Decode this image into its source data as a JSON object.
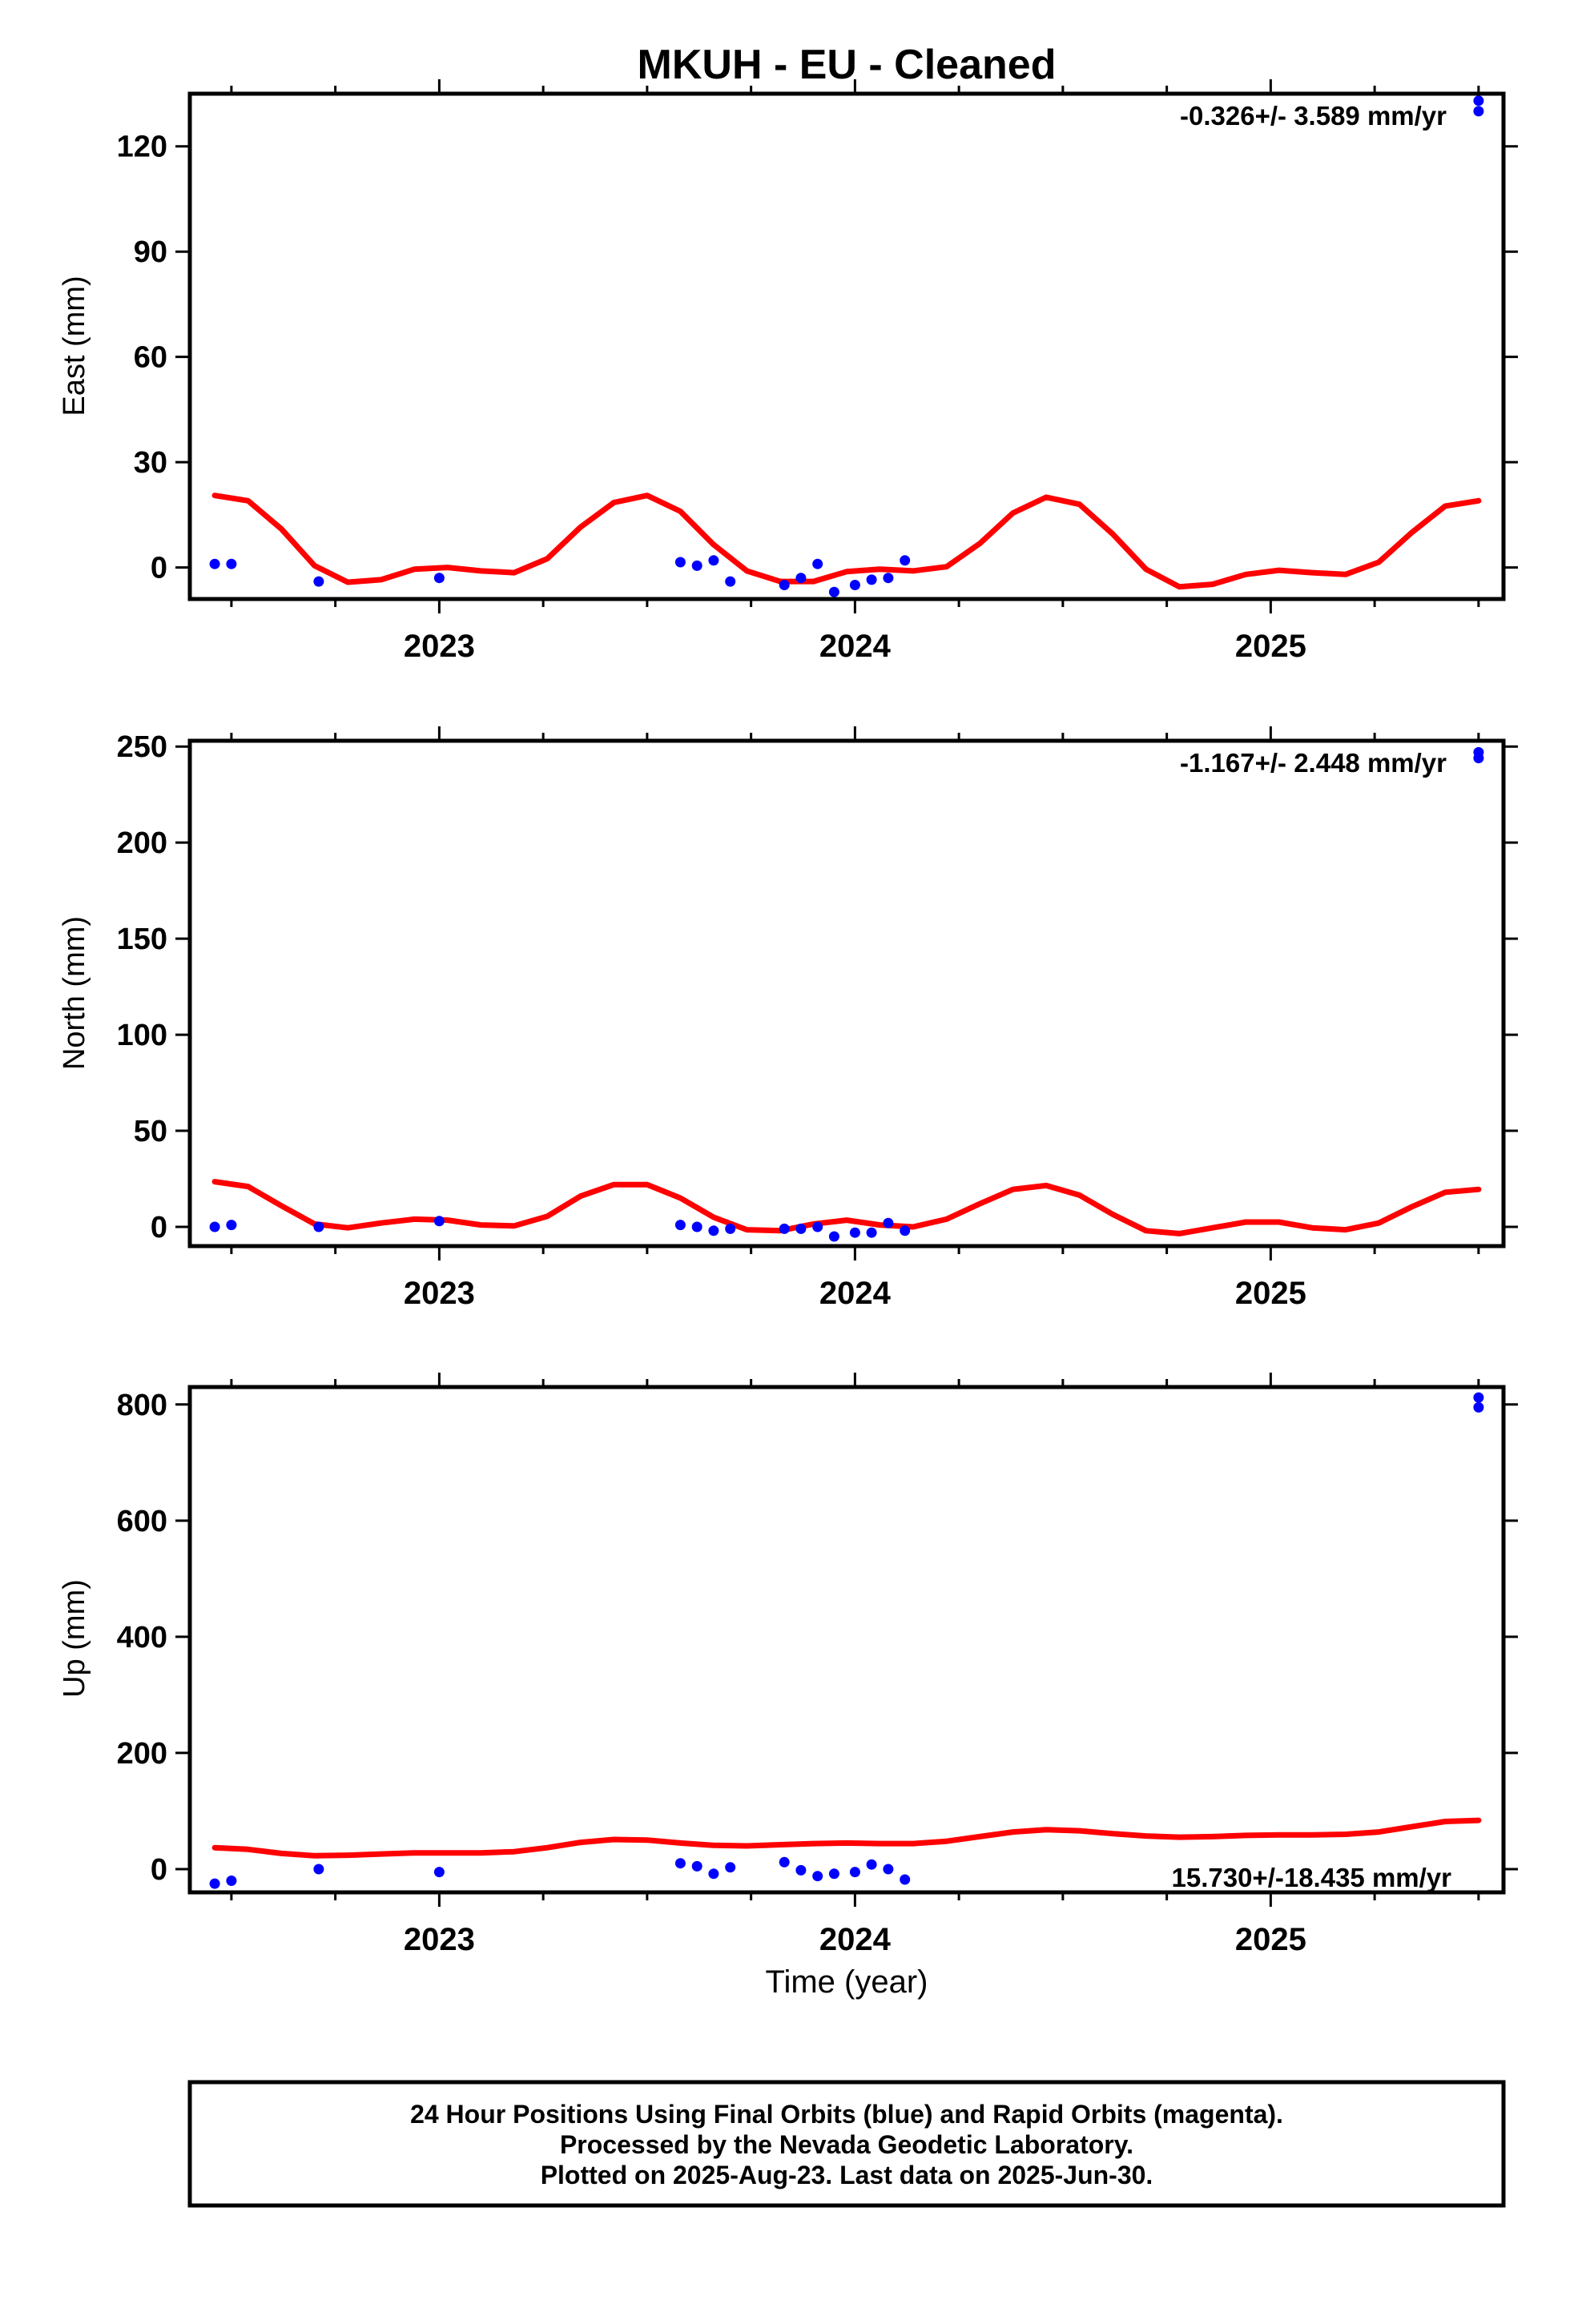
{
  "title": "MKUH  - EU - Cleaned",
  "xlabel": "Time (year)",
  "footer": [
    "24 Hour Positions Using Final Orbits (blue) and Rapid Orbits (magenta).",
    "Processed by the Nevada Geodetic Laboratory.",
    "Plotted on 2025-Aug-23. Last data on 2025-Jun-30."
  ],
  "colors": {
    "points": "#0000ff",
    "model": "#ff0000",
    "frame": "#000000"
  },
  "chart_data": [
    {
      "type": "scatter",
      "ylabel": "East (mm)",
      "rate_text": "-0.326+/- 3.589 mm/yr",
      "rate_position": "top-right",
      "xlim": [
        2022.4,
        2025.56
      ],
      "ylim": [
        -9,
        135
      ],
      "x_ticks": [
        2023,
        2024,
        2025
      ],
      "y_ticks": [
        0,
        30,
        60,
        90,
        120
      ],
      "grid": false,
      "points": [
        [
          2022.46,
          1
        ],
        [
          2022.5,
          1
        ],
        [
          2022.71,
          -4
        ],
        [
          2023.0,
          -3
        ],
        [
          2023.58,
          1.5
        ],
        [
          2023.62,
          0.5
        ],
        [
          2023.66,
          2
        ],
        [
          2023.7,
          -4
        ],
        [
          2023.83,
          -5
        ],
        [
          2023.87,
          -3
        ],
        [
          2023.91,
          1
        ],
        [
          2023.95,
          -7
        ],
        [
          2024.0,
          -5
        ],
        [
          2024.04,
          -3.5
        ],
        [
          2024.08,
          -3
        ],
        [
          2024.12,
          2
        ],
        [
          2025.5,
          130
        ],
        [
          2025.5,
          133
        ]
      ],
      "model": {
        "name": "model",
        "x": [
          2022.46,
          2022.54,
          2022.62,
          2022.7,
          2022.78,
          2022.86,
          2022.94,
          2023.02,
          2023.1,
          2023.18,
          2023.26,
          2023.34,
          2023.42,
          2023.5,
          2023.58,
          2023.66,
          2023.74,
          2023.82,
          2023.9,
          2023.98,
          2024.06,
          2024.14,
          2024.22,
          2024.3,
          2024.38,
          2024.46,
          2024.54,
          2024.62,
          2024.7,
          2024.78,
          2024.86,
          2024.94,
          2025.02,
          2025.1,
          2025.18,
          2025.26,
          2025.34,
          2025.42,
          2025.5
        ],
        "y": [
          20.5,
          19.0,
          11.0,
          0.5,
          -4.2,
          -3.5,
          -0.5,
          0.0,
          -1.0,
          -1.5,
          2.5,
          11.5,
          18.5,
          20.5,
          16.0,
          6.5,
          -1.0,
          -4.0,
          -4.0,
          -1.2,
          -0.5,
          -1.0,
          0.2,
          6.8,
          15.5,
          20.0,
          18.0,
          9.5,
          -0.5,
          -5.5,
          -4.8,
          -2.0,
          -0.8,
          -1.5,
          -2.0,
          1.5,
          10.0,
          17.5,
          19.0
        ]
      }
    },
    {
      "type": "scatter",
      "ylabel": "North (mm)",
      "rate_text": "-1.167+/- 2.448 mm/yr",
      "rate_position": "top-right",
      "xlim": [
        2022.4,
        2025.56
      ],
      "ylim": [
        -10,
        253
      ],
      "x_ticks": [
        2023,
        2024,
        2025
      ],
      "y_ticks": [
        0,
        50,
        100,
        150,
        200,
        250
      ],
      "grid": false,
      "points": [
        [
          2022.46,
          0
        ],
        [
          2022.5,
          1
        ],
        [
          2022.71,
          0
        ],
        [
          2023.0,
          3
        ],
        [
          2023.58,
          1
        ],
        [
          2023.62,
          0
        ],
        [
          2023.66,
          -2
        ],
        [
          2023.7,
          -1
        ],
        [
          2023.83,
          -1
        ],
        [
          2023.87,
          -1
        ],
        [
          2023.91,
          0
        ],
        [
          2023.95,
          -5
        ],
        [
          2024.0,
          -3
        ],
        [
          2024.04,
          -3
        ],
        [
          2024.08,
          2
        ],
        [
          2024.12,
          -2
        ],
        [
          2025.5,
          244
        ],
        [
          2025.5,
          247
        ]
      ],
      "model": {
        "name": "model",
        "x": [
          2022.46,
          2022.54,
          2022.62,
          2022.7,
          2022.78,
          2022.86,
          2022.94,
          2023.02,
          2023.1,
          2023.18,
          2023.26,
          2023.34,
          2023.42,
          2023.5,
          2023.58,
          2023.66,
          2023.74,
          2023.82,
          2023.9,
          2023.98,
          2024.06,
          2024.14,
          2024.22,
          2024.3,
          2024.38,
          2024.46,
          2024.54,
          2024.62,
          2024.7,
          2024.78,
          2024.86,
          2024.94,
          2025.02,
          2025.1,
          2025.18,
          2025.26,
          2025.34,
          2025.42,
          2025.5
        ],
        "y": [
          23.5,
          21.0,
          11.0,
          1.5,
          -0.5,
          2.0,
          4.0,
          3.5,
          1.0,
          0.5,
          5.5,
          16.0,
          22.0,
          22.0,
          15.0,
          5.0,
          -1.5,
          -2.0,
          1.5,
          3.5,
          1.0,
          0.0,
          4.0,
          12.0,
          19.5,
          21.5,
          16.5,
          6.5,
          -2.0,
          -3.5,
          -0.5,
          2.5,
          2.5,
          -0.5,
          -1.5,
          2.0,
          10.5,
          18.0,
          19.5
        ]
      }
    },
    {
      "type": "scatter",
      "ylabel": "Up (mm)",
      "rate_text": "15.730+/-18.435 mm/yr",
      "rate_position": "bottom-right",
      "xlim": [
        2022.4,
        2025.56
      ],
      "ylim": [
        -40,
        830
      ],
      "x_ticks": [
        2023,
        2024,
        2025
      ],
      "y_ticks": [
        0,
        200,
        400,
        600,
        800
      ],
      "grid": false,
      "points": [
        [
          2022.46,
          -25
        ],
        [
          2022.5,
          -20
        ],
        [
          2022.71,
          0
        ],
        [
          2023.0,
          -5
        ],
        [
          2023.58,
          10
        ],
        [
          2023.62,
          5
        ],
        [
          2023.66,
          -8
        ],
        [
          2023.7,
          3
        ],
        [
          2023.83,
          12
        ],
        [
          2023.87,
          -2
        ],
        [
          2023.91,
          -12
        ],
        [
          2023.95,
          -8
        ],
        [
          2024.0,
          -5
        ],
        [
          2024.04,
          8
        ],
        [
          2024.08,
          0
        ],
        [
          2024.12,
          -18
        ],
        [
          2025.5,
          795
        ],
        [
          2025.5,
          812
        ]
      ],
      "model": {
        "name": "model",
        "x": [
          2022.46,
          2022.54,
          2022.62,
          2022.7,
          2022.78,
          2022.86,
          2022.94,
          2023.02,
          2023.1,
          2023.18,
          2023.26,
          2023.34,
          2023.42,
          2023.5,
          2023.58,
          2023.66,
          2023.74,
          2023.82,
          2023.9,
          2023.98,
          2024.06,
          2024.14,
          2024.22,
          2024.3,
          2024.38,
          2024.46,
          2024.54,
          2024.62,
          2024.7,
          2024.78,
          2024.86,
          2024.94,
          2025.02,
          2025.1,
          2025.18,
          2025.26,
          2025.34,
          2025.42,
          2025.5
        ],
        "y": [
          37,
          34,
          27,
          23,
          24,
          26,
          28,
          28,
          28,
          30,
          37,
          46,
          51,
          50,
          45,
          41,
          40,
          42,
          44,
          45,
          44,
          44,
          48,
          56,
          64,
          68,
          66,
          61,
          57,
          55,
          56,
          58,
          59,
          59,
          60,
          64,
          73,
          82,
          84
        ]
      }
    }
  ]
}
